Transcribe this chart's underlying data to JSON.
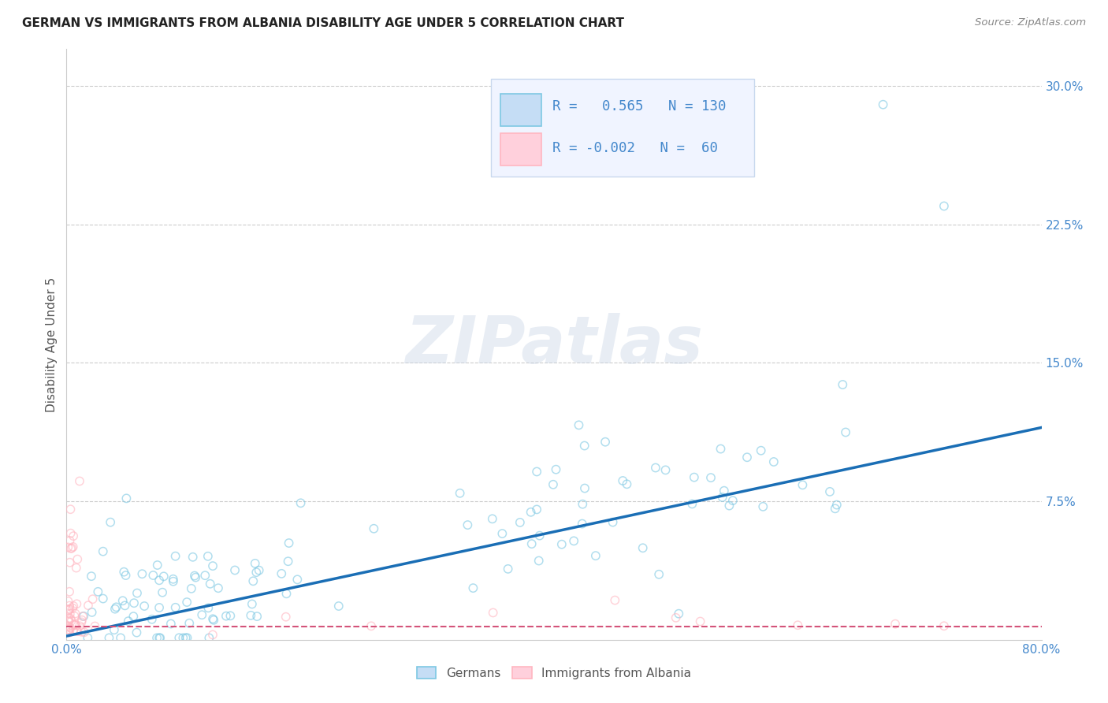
{
  "title": "GERMAN VS IMMIGRANTS FROM ALBANIA DISABILITY AGE UNDER 5 CORRELATION CHART",
  "source": "Source: ZipAtlas.com",
  "ylabel": "Disability Age Under 5",
  "watermark": "ZIPatlas",
  "blue_R": 0.565,
  "blue_N": 130,
  "pink_R": -0.002,
  "pink_N": 60,
  "xlim": [
    0.0,
    0.8
  ],
  "ylim": [
    0.0,
    0.32
  ],
  "yticks_right": [
    0.075,
    0.15,
    0.225,
    0.3
  ],
  "ytick_labels_right": [
    "7.5%",
    "15.0%",
    "22.5%",
    "30.0%"
  ],
  "xtick_positions": [
    0.0,
    0.1,
    0.2,
    0.3,
    0.4,
    0.5,
    0.6,
    0.7,
    0.8
  ],
  "xtick_labels": [
    "0.0%",
    "",
    "",
    "",
    "",
    "",
    "",
    "",
    "80.0%"
  ],
  "blue_color": "#7ec8e3",
  "blue_edge_color": "#5aace0",
  "pink_color": "#ffb6c1",
  "pink_edge_color": "#f48aaa",
  "line_blue": "#1a6eb5",
  "line_pink": "#d4547a",
  "background": "#ffffff",
  "grid_color": "#cccccc",
  "title_color": "#222222",
  "axis_label_color": "#555555",
  "right_tick_color": "#4488cc",
  "legend_face_color": "#f0f4ff",
  "legend_border_color": "#c8d8ee",
  "blue_legend_face": "#c5ddf5",
  "pink_legend_face": "#ffd0dc",
  "blue_line_x": [
    0.0,
    0.8
  ],
  "blue_line_y": [
    0.002,
    0.115
  ],
  "pink_line_x": [
    0.0,
    0.8
  ],
  "pink_line_y": [
    0.007,
    0.007
  ],
  "dot_size": 55,
  "dot_alpha": 0.6,
  "dot_linewidth": 1.1
}
